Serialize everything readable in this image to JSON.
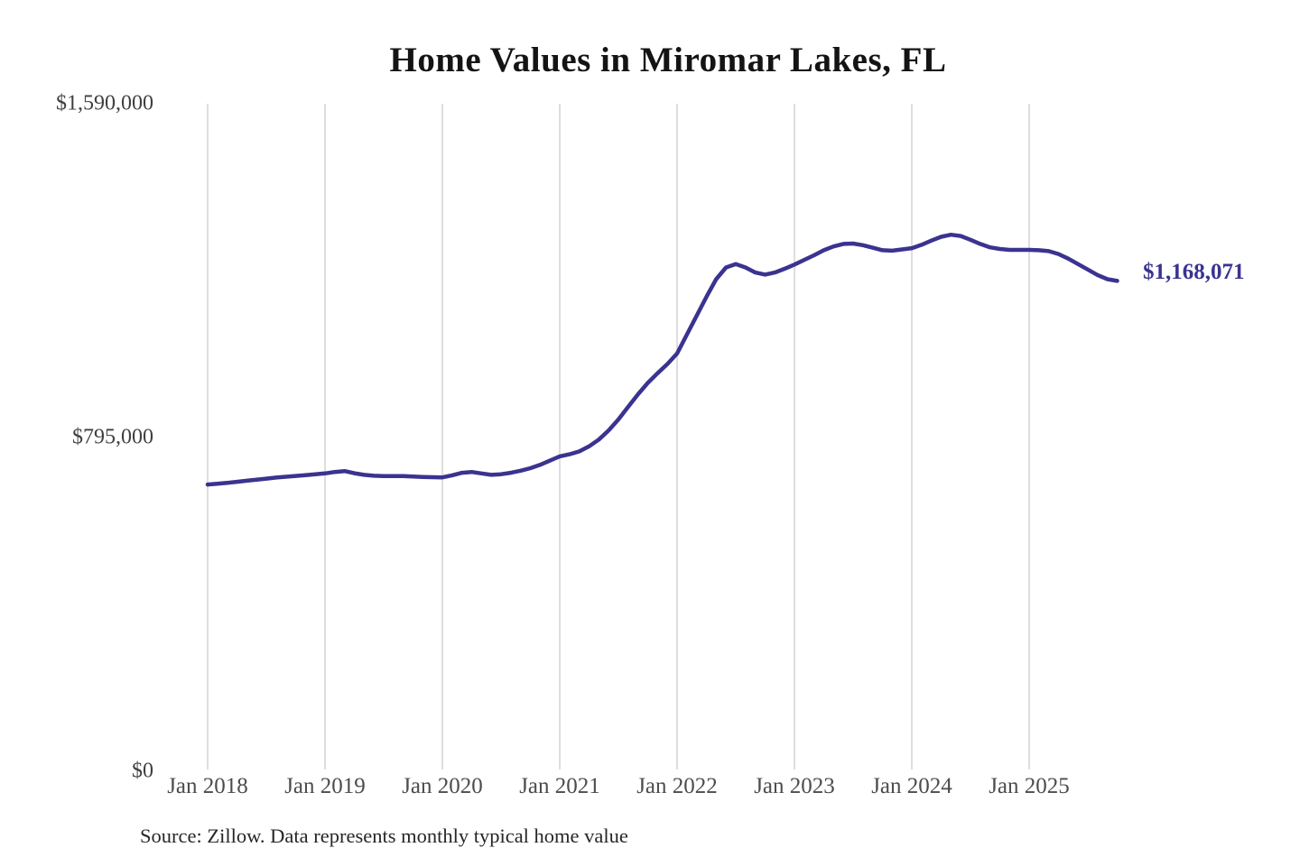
{
  "title": "Home Values in Miromar Lakes, FL",
  "source_note": "Source: Zillow. Data represents monthly typical home value",
  "colors": {
    "line": "#3a338f",
    "grid": "#cccccc",
    "axis_text": "#4c4c4c",
    "title_text": "#141414"
  },
  "chart_data": {
    "type": "line",
    "title": "Home Values in Miromar Lakes, FL",
    "xlabel": "",
    "ylabel": "",
    "ylim": [
      0,
      1590000
    ],
    "y_ticks": [
      0,
      795000,
      1590000
    ],
    "y_tick_labels": [
      "$0",
      "$795,000",
      "$1,590,000"
    ],
    "x_tick_labels": [
      "Jan 2018",
      "Jan 2019",
      "Jan 2020",
      "Jan 2021",
      "Jan 2022",
      "Jan 2023",
      "Jan 2024",
      "Jan 2025"
    ],
    "grid": "vertical-only",
    "legend": "none",
    "final_value": 1168071,
    "final_value_label": "$1,168,071",
    "series": [
      {
        "name": "Monthly typical home value",
        "unit": "USD",
        "x_start": "2018-01",
        "x_interval": "month",
        "values": [
          683000,
          685000,
          687000,
          689500,
          692000,
          694500,
          697000,
          699500,
          701500,
          703500,
          705500,
          707500,
          709500,
          713000,
          715000,
          710000,
          706000,
          704000,
          703000,
          703000,
          703000,
          702000,
          701000,
          700500,
          700000,
          705000,
          711000,
          713000,
          709500,
          706000,
          707500,
          711000,
          716000,
          722000,
          730000,
          740000,
          750000,
          755000,
          762000,
          774000,
          790000,
          812000,
          838000,
          868000,
          898000,
          925000,
          948000,
          970000,
          995000,
          1040000,
          1085000,
          1130000,
          1172000,
          1200000,
          1208000,
          1200000,
          1188000,
          1183000,
          1188000,
          1197000,
          1207000,
          1218000,
          1229000,
          1241000,
          1250000,
          1256000,
          1257000,
          1253000,
          1247000,
          1241000,
          1240000,
          1243000,
          1246000,
          1254000,
          1264000,
          1273000,
          1278000,
          1275000,
          1266000,
          1256000,
          1248000,
          1244000,
          1242000,
          1242000,
          1242000,
          1241000,
          1239000,
          1232000,
          1221000,
          1208000,
          1195000,
          1182000,
          1172000,
          1168071
        ]
      }
    ]
  }
}
